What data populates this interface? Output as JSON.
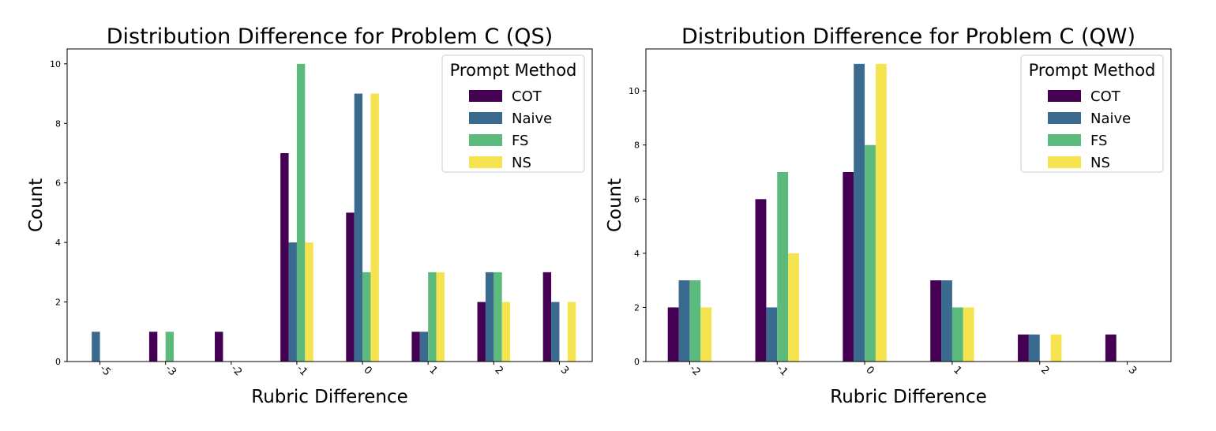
{
  "chart_data": [
    {
      "type": "bar",
      "title": "Distribution Difference for Problem C (QS)",
      "xlabel": "Rubric Difference",
      "ylabel": "Count",
      "categories": [
        "-5",
        "-3",
        "-2",
        "-1",
        "0",
        "1",
        "2",
        "3"
      ],
      "series": [
        {
          "name": "COT",
          "values": [
            0,
            1,
            1,
            7,
            5,
            1,
            2,
            3
          ]
        },
        {
          "name": "Naive",
          "values": [
            1,
            0,
            0,
            4,
            9,
            1,
            3,
            2
          ]
        },
        {
          "name": "FS",
          "values": [
            0,
            1,
            0,
            10,
            3,
            3,
            3,
            0
          ]
        },
        {
          "name": "NS",
          "values": [
            0,
            0,
            0,
            4,
            9,
            3,
            2,
            2
          ]
        }
      ],
      "ylim": [
        0,
        10.5
      ],
      "yticks": [
        0,
        2,
        4,
        6,
        8,
        10
      ],
      "legend_title": "Prompt Method",
      "legend_position": "top-right",
      "grid": false
    },
    {
      "type": "bar",
      "title": "Distribution Difference for Problem C (QW)",
      "xlabel": "Rubric Difference",
      "ylabel": "Count",
      "categories": [
        "-2",
        "-1",
        "0",
        "1",
        "2",
        "3"
      ],
      "series": [
        {
          "name": "COT",
          "values": [
            2,
            6,
            7,
            3,
            1,
            1
          ]
        },
        {
          "name": "Naive",
          "values": [
            3,
            2,
            11,
            3,
            1,
            0
          ]
        },
        {
          "name": "FS",
          "values": [
            3,
            7,
            8,
            2,
            0,
            0
          ]
        },
        {
          "name": "NS",
          "values": [
            2,
            4,
            11,
            2,
            1,
            0
          ]
        }
      ],
      "ylim": [
        0,
        11.55
      ],
      "yticks": [
        0,
        2,
        4,
        6,
        8,
        10
      ],
      "legend_title": "Prompt Method",
      "legend_position": "top-right",
      "grid": false
    }
  ],
  "colors": {
    "COT": "#440154",
    "Naive": "#3b6a8f",
    "FS": "#5dba7d",
    "NS": "#f5e44f"
  }
}
